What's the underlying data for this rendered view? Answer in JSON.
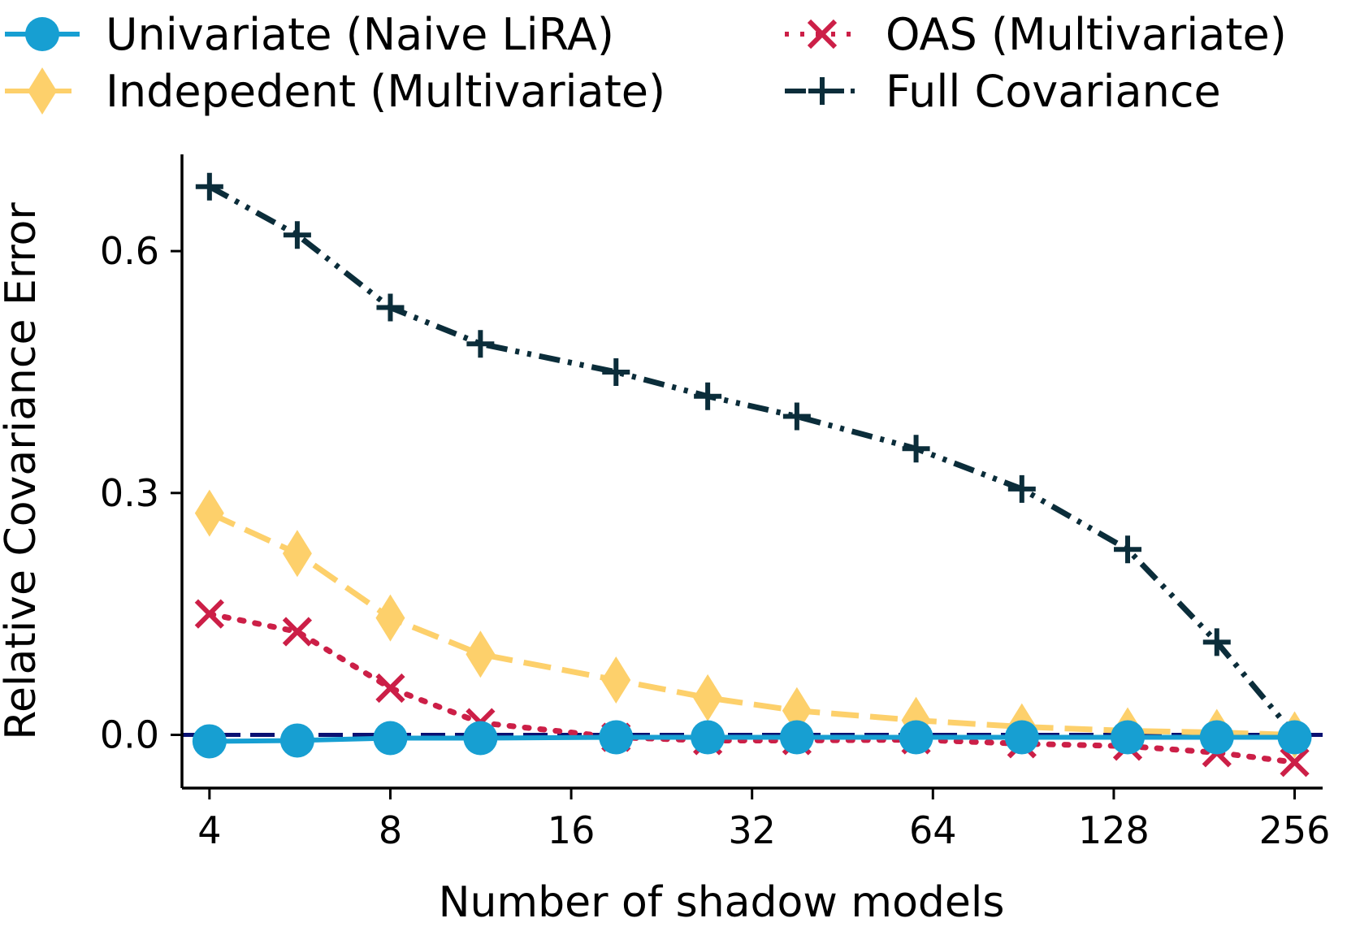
{
  "chart_data": {
    "type": "line",
    "xscale": "log2",
    "x": [
      4,
      5.6,
      8,
      11.3,
      19,
      27,
      38,
      60,
      90,
      135,
      190,
      256
    ],
    "xticks": [
      4,
      8,
      16,
      32,
      64,
      128,
      256
    ],
    "xtick_labels": [
      "4",
      "8",
      "16",
      "32",
      "64",
      "128",
      "256"
    ],
    "yticks": [
      0.0,
      0.3,
      0.6
    ],
    "ytick_labels": [
      "0.0",
      "0.3",
      "0.6"
    ],
    "xlim": [
      3.6,
      285
    ],
    "ylim": [
      -0.066,
      0.72
    ],
    "xlabel": "Number of shadow models",
    "ylabel": "Relative Covariance Error",
    "legend_position": "top",
    "reference_line": {
      "y": 0.0,
      "color": "#0a1172"
    },
    "series": [
      {
        "name": "Full Covariance",
        "color": "#0b2d3a",
        "marker": "plus",
        "dash": "dashdotdot",
        "values": [
          0.68,
          0.62,
          0.53,
          0.485,
          0.45,
          0.42,
          0.395,
          0.355,
          0.305,
          0.23,
          0.115,
          0.0
        ]
      },
      {
        "name": "Indepedent (Multivariate)",
        "color": "#fdd06b",
        "marker": "diamond",
        "dash": "dashed",
        "values": [
          0.275,
          0.225,
          0.145,
          0.1,
          0.068,
          0.046,
          0.03,
          0.018,
          0.01,
          0.005,
          0.003,
          0.0
        ]
      },
      {
        "name": "OAS (Multivariate)",
        "color": "#cc1f47",
        "marker": "x",
        "dash": "dotted",
        "values": [
          0.15,
          0.128,
          0.058,
          0.015,
          -0.003,
          -0.007,
          -0.007,
          -0.006,
          -0.011,
          -0.014,
          -0.022,
          -0.034
        ]
      },
      {
        "name": "Univariate (Naive LiRA)",
        "color": "#179fd2",
        "marker": "circle",
        "dash": "solid",
        "values": [
          -0.008,
          -0.007,
          -0.004,
          -0.004,
          -0.003,
          -0.003,
          -0.003,
          -0.003,
          -0.003,
          -0.003,
          -0.003,
          -0.003
        ]
      }
    ],
    "legend": [
      {
        "name": "Univariate (Naive LiRA)",
        "color": "#179fd2",
        "marker": "circle",
        "dash": "solid"
      },
      {
        "name": "Indepedent (Multivariate)",
        "color": "#fdd06b",
        "marker": "diamond",
        "dash": "dashed"
      },
      {
        "name": "OAS (Multivariate)",
        "color": "#cc1f47",
        "marker": "x",
        "dash": "dotted"
      },
      {
        "name": "Full Covariance",
        "color": "#0b2d3a",
        "marker": "plus",
        "dash": "dashdotdot"
      }
    ]
  }
}
